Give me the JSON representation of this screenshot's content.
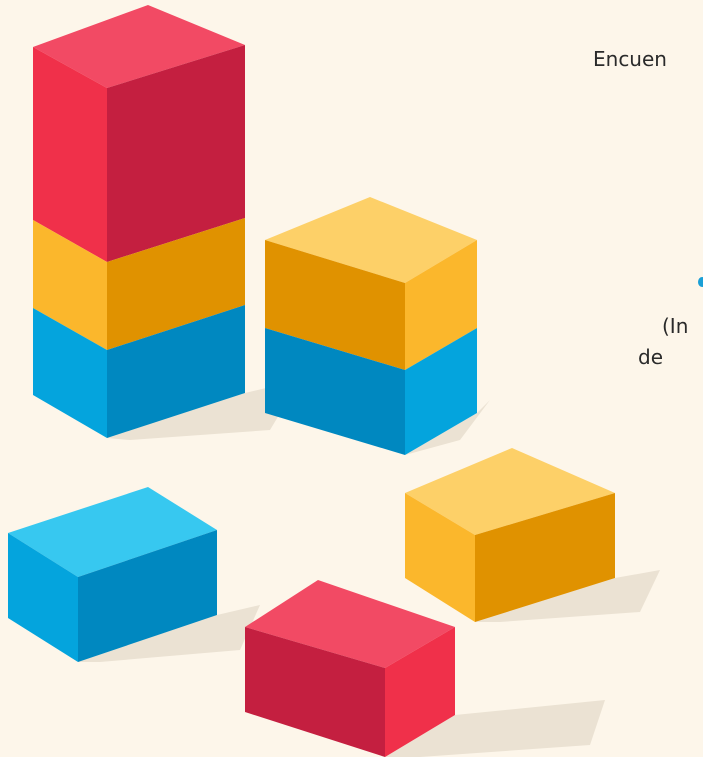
{
  "texts": {
    "line1": "Encuen",
    "line2": "(In",
    "line3": "de"
  }
}
